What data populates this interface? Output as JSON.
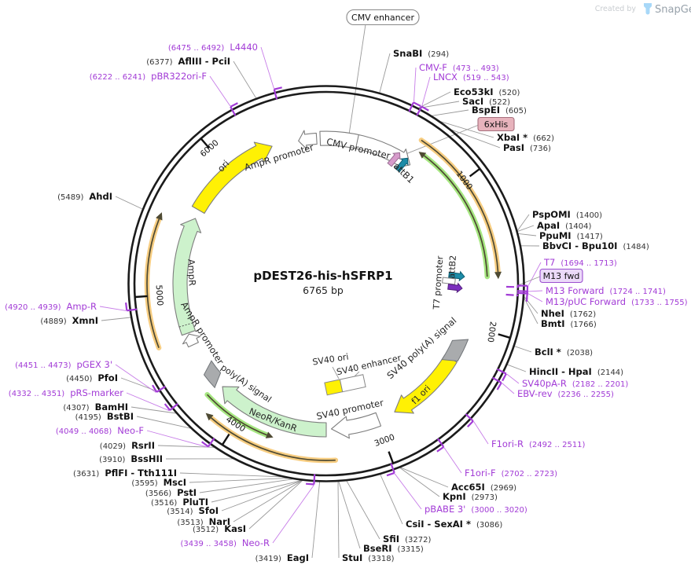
{
  "watermark": {
    "created_by": "Created by",
    "brand": "SnapGene"
  },
  "plasmid": {
    "name": "pDEST26-his-hSFRP1",
    "size": "6765 bp"
  },
  "ticks": [
    "1000",
    "2000",
    "3000",
    "4000",
    "5000",
    "6000"
  ],
  "features": {
    "cmv_enhancer": "CMV enhancer",
    "cmv_promoter": "CMV promoter",
    "ampr_promoter_top": "AmpR promoter",
    "attb1": "attB1",
    "his6": "6xHis",
    "t7_promoter": "T7 promoter",
    "attb2": "attB2",
    "m13_fwd": "M13 fwd",
    "sv40_polya": "SV40 poly(A) signal",
    "f1_ori": "f1 ori",
    "sv40_ori": "SV40 ori",
    "sv40_enhancer": "SV40 enhancer",
    "sv40_promoter": "SV40 promoter",
    "neor_kanr": "NeoR/KanR",
    "polya": "poly(A) signal",
    "ampr_promoter": "AmpR promoter",
    "ampr": "AmpR",
    "ori": "ori"
  },
  "labels": {
    "snabi": {
      "name": "SnaBI",
      "pos": "(294)"
    },
    "cmvf": {
      "name": "CMV-F",
      "pos": "(473 .. 493)"
    },
    "lncx": {
      "name": "LNCX",
      "pos": "(519 .. 543)"
    },
    "eco53ki": {
      "name": "Eco53kI",
      "pos": "(520)"
    },
    "saci": {
      "name": "SacI",
      "pos": "(522)"
    },
    "bspei": {
      "name": "BspEI",
      "pos": "(605)"
    },
    "xbai": {
      "name": "XbaI *",
      "pos": "(662)"
    },
    "pasi": {
      "name": "PasI",
      "pos": "(736)"
    },
    "pspomi": {
      "name": "PspOMI",
      "pos": "(1400)"
    },
    "apai": {
      "name": "ApaI",
      "pos": "(1404)"
    },
    "ppumi": {
      "name": "PpuMI",
      "pos": "(1417)"
    },
    "bbvci": {
      "name": "BbvCI - Bpu10I",
      "pos": "(1484)"
    },
    "t7": {
      "name": "T7",
      "pos": "(1694 .. 1713)"
    },
    "m13forward": {
      "name": "M13 Forward",
      "pos": "(1724 .. 1741)"
    },
    "m13puc": {
      "name": "M13/pUC Forward",
      "pos": "(1733 .. 1755)"
    },
    "nhei": {
      "name": "NheI",
      "pos": "(1762)"
    },
    "bmti": {
      "name": "BmtI",
      "pos": "(1766)"
    },
    "bcli": {
      "name": "BclI *",
      "pos": "(2038)"
    },
    "hincii": {
      "name": "HincII - HpaI",
      "pos": "(2144)"
    },
    "sv40par": {
      "name": "SV40pA-R",
      "pos": "(2182 .. 2201)"
    },
    "ebvrev": {
      "name": "EBV-rev",
      "pos": "(2236 .. 2255)"
    },
    "f1orir": {
      "name": "F1ori-R",
      "pos": "(2492 .. 2511)"
    },
    "f1orif": {
      "name": "F1ori-F",
      "pos": "(2702 .. 2723)"
    },
    "acc65i": {
      "name": "Acc65I",
      "pos": "(2969)"
    },
    "kpni": {
      "name": "KpnI",
      "pos": "(2973)"
    },
    "pbabe3": {
      "name": "pBABE 3'",
      "pos": "(3000 .. 3020)"
    },
    "csii": {
      "name": "CsiI - SexAI *",
      "pos": "(3086)"
    },
    "sfii": {
      "name": "SfiI",
      "pos": "(3272)"
    },
    "bseri": {
      "name": "BseRI",
      "pos": "(3315)"
    },
    "stui": {
      "name": "StuI",
      "pos": "(3318)"
    },
    "eagi": {
      "name": "EagI",
      "pos": "(3419)"
    },
    "neor_primer": {
      "name": "Neo-R",
      "pos": "(3439 .. 3458)"
    },
    "kasi": {
      "name": "KasI",
      "pos": "(3512)"
    },
    "nari": {
      "name": "NarI",
      "pos": "(3513)"
    },
    "sfoi": {
      "name": "SfoI",
      "pos": "(3514)"
    },
    "pluti": {
      "name": "PluTI",
      "pos": "(3516)"
    },
    "psti": {
      "name": "PstI",
      "pos": "(3566)"
    },
    "msci": {
      "name": "MscI",
      "pos": "(3595)"
    },
    "pflfi": {
      "name": "PflFI - Tth111I",
      "pos": "(3631)"
    },
    "bsshii": {
      "name": "BssHII",
      "pos": "(3910)"
    },
    "rsrii": {
      "name": "RsrII",
      "pos": "(4029)"
    },
    "neof": {
      "name": "Neo-F",
      "pos": "(4049 .. 4068)"
    },
    "bstbi": {
      "name": "BstBI",
      "pos": "(4195)"
    },
    "bamhi": {
      "name": "BamHI",
      "pos": "(4307)"
    },
    "prsmarker": {
      "name": "pRS-marker",
      "pos": "(4332 .. 4351)"
    },
    "pfoi": {
      "name": "PfoI",
      "pos": "(4450)"
    },
    "pgex3": {
      "name": "pGEX 3'",
      "pos": "(4451 .. 4473)"
    },
    "xmni": {
      "name": "XmnI",
      "pos": "(4889)"
    },
    "ampr_primer": {
      "name": "Amp-R",
      "pos": "(4920 .. 4939)"
    },
    "ahdi": {
      "name": "AhdI",
      "pos": "(5489)"
    },
    "pbr322orif": {
      "name": "pBR322ori-F",
      "pos": "(6222 .. 6241)"
    },
    "aflIII": {
      "name": "AflIII - PciI",
      "pos": "(6377)"
    },
    "l4440": {
      "name": "L4440",
      "pos": "(6475 .. 6492)"
    }
  }
}
